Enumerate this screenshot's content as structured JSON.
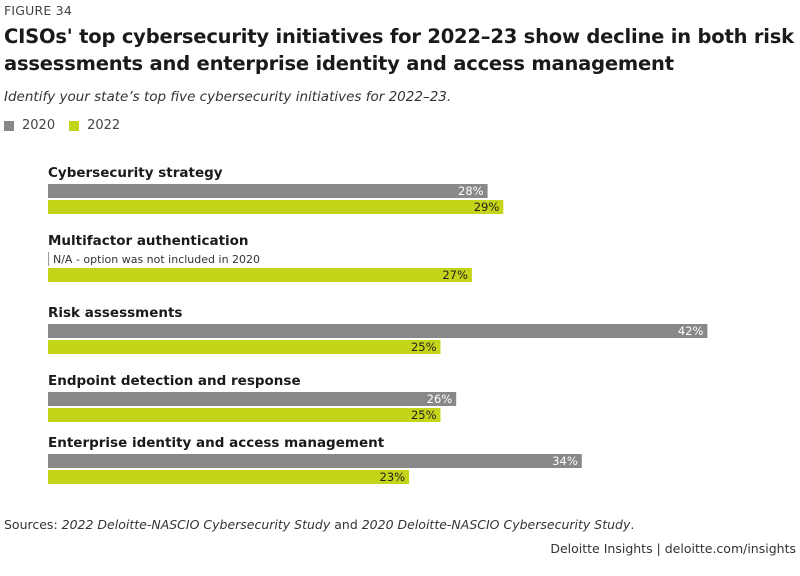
{
  "figure_label": "FIGURE 34",
  "title": "CISOs' top cybersecurity initiatives for 2022–23 show decline in both risk assessments and enterprise identity and access management",
  "subtitle": "Identify your state’s top five cybersecurity initiatives for 2022–23.",
  "colors": {
    "2020": "#86888a",
    "2022": "#c4d418"
  },
  "chart_data": {
    "type": "bar",
    "orientation": "horizontal",
    "value_suffix": "%",
    "xlim": [
      0,
      50
    ],
    "legend": [
      "2020",
      "2022"
    ],
    "categories": [
      "Cybersecurity strategy",
      "Multifactor authentication",
      "Risk assessments",
      "Endpoint detection and response",
      "Enterprise identity and access management"
    ],
    "series": [
      {
        "name": "2020",
        "values": [
          28,
          null,
          42,
          26,
          34
        ]
      },
      {
        "name": "2022",
        "values": [
          29,
          27,
          25,
          25,
          23
        ]
      }
    ],
    "annotations": [
      {
        "category": "Multifactor authentication",
        "series": "2020",
        "text": "N/A - option was not included in 2020"
      }
    ]
  },
  "sources": {
    "prefix": "Sources: ",
    "study_2022": "2022 Deloitte-NASCIO Cybersecurity Study",
    "joiner": " and ",
    "study_2020": "2020 Deloitte-NASCIO Cybersecurity Study",
    "suffix": "."
  },
  "footer": "Deloitte Insights | deloitte.com/insights"
}
